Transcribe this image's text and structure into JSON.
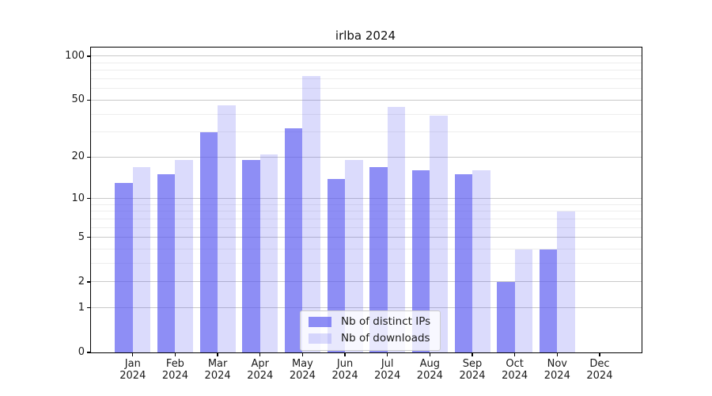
{
  "chart_data": {
    "type": "bar",
    "title": "irlba 2024",
    "categories": [
      "Jan",
      "Feb",
      "Mar",
      "Apr",
      "May",
      "Jun",
      "Jul",
      "Aug",
      "Sep",
      "Oct",
      "Nov",
      "Dec"
    ],
    "x_year_label": "2024",
    "series": [
      {
        "name": "Nb of distinct IPs",
        "color": "rgba(88,88,240,0.68)",
        "values": [
          13,
          15,
          30,
          19,
          32,
          14,
          17,
          16,
          15,
          2,
          4,
          0
        ]
      },
      {
        "name": "Nb of downloads",
        "color": "rgba(88,88,240,0.215)",
        "values": [
          17,
          19,
          46,
          21,
          73,
          19,
          45,
          39,
          16,
          4,
          8,
          0
        ]
      }
    ],
    "yscale": "log1p",
    "ylim": [
      0,
      113
    ],
    "yticks": [
      0,
      1,
      2,
      5,
      10,
      20,
      50,
      100
    ],
    "minor_gridlines": [
      3,
      4,
      6,
      7,
      8,
      9,
      30,
      40,
      60,
      70,
      80,
      90
    ],
    "grid": true,
    "legend_position": "lower center",
    "axis_color": "#000000",
    "grid_major_color": "#c9c9c9",
    "grid_minor_color": "#ededed"
  },
  "legend": {
    "items": [
      {
        "label": "Nb of distinct IPs",
        "color": "rgba(88,88,240,0.68)"
      },
      {
        "label": "Nb of downloads",
        "color": "rgba(88,88,240,0.215)"
      }
    ]
  }
}
